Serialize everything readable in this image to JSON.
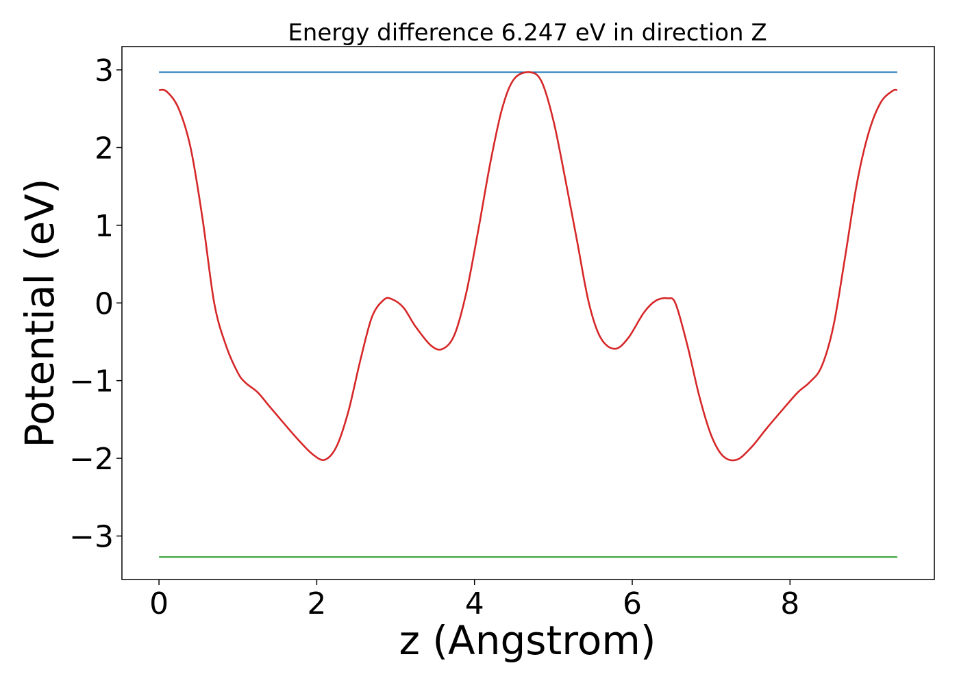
{
  "chart_data": {
    "type": "line",
    "title": "Energy difference 6.247 eV in direction Z",
    "xlabel": "z (Angstrom)",
    "ylabel": "Potential (eV)",
    "xlim": [
      -0.47,
      9.83
    ],
    "ylim": [
      -3.56,
      3.3
    ],
    "xticks": [
      0,
      2,
      4,
      6,
      8
    ],
    "xtick_labels": [
      "0",
      "2",
      "4",
      "6",
      "8"
    ],
    "yticks": [
      3,
      2,
      1,
      0,
      -1,
      -2,
      -3
    ],
    "ytick_labels": [
      "3",
      "2",
      "1",
      "0",
      "−1",
      "−2",
      "−3"
    ],
    "grid": false,
    "legend": "none",
    "series": [
      {
        "color": "#1f77b4",
        "x": [
          0,
          9.36
        ],
        "y": [
          2.97,
          2.97
        ]
      },
      {
        "color": "#2ca02c",
        "x": [
          0,
          9.36
        ],
        "y": [
          -3.27,
          -3.27
        ]
      },
      {
        "color": "#d62728",
        "x": [
          0,
          0.1,
          0.25,
          0.4,
          0.55,
          0.7,
          0.85,
          1.0,
          1.1,
          1.25,
          1.4,
          1.6,
          1.8,
          1.95,
          2.1,
          2.25,
          2.4,
          2.55,
          2.7,
          2.85,
          2.95,
          3.1,
          3.25,
          3.45,
          3.6,
          3.75,
          3.9,
          4.05,
          4.2,
          4.35,
          4.5,
          4.7,
          4.85,
          5.0,
          5.15,
          5.3,
          5.45,
          5.6,
          5.78,
          5.95,
          6.15,
          6.3,
          6.45,
          6.55,
          6.7,
          6.85,
          7.0,
          7.15,
          7.32,
          7.5,
          7.7,
          7.9,
          8.1,
          8.25,
          8.4,
          8.55,
          8.7,
          8.85,
          9.0,
          9.15,
          9.3,
          9.36
        ],
        "y": [
          2.74,
          2.72,
          2.5,
          2.0,
          1.1,
          0.0,
          -0.55,
          -0.9,
          -1.03,
          -1.15,
          -1.33,
          -1.57,
          -1.8,
          -1.95,
          -2.02,
          -1.85,
          -1.4,
          -0.75,
          -0.18,
          0.04,
          0.05,
          -0.06,
          -0.3,
          -0.55,
          -0.59,
          -0.4,
          0.15,
          0.95,
          1.8,
          2.5,
          2.88,
          2.97,
          2.85,
          2.35,
          1.6,
          0.8,
          0.0,
          -0.45,
          -0.59,
          -0.45,
          -0.12,
          0.03,
          0.06,
          -0.01,
          -0.55,
          -1.2,
          -1.7,
          -1.97,
          -2.02,
          -1.87,
          -1.62,
          -1.38,
          -1.15,
          -1.02,
          -0.82,
          -0.3,
          0.6,
          1.55,
          2.2,
          2.58,
          2.73,
          2.74
        ]
      }
    ]
  }
}
